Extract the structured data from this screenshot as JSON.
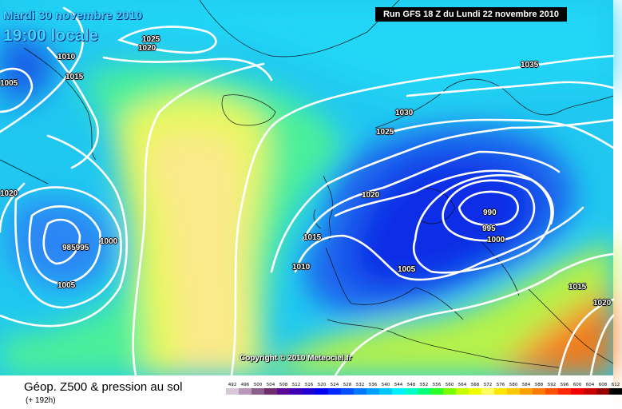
{
  "header": {
    "date": "Mardi 30 novembre 2010",
    "time": "19:00 locale",
    "run": "Run GFS 18 Z du Lundi 22 novembre 2010"
  },
  "copyright": "Copyright © 2010 Meteociel.fr",
  "footer": {
    "title": "Géop. Z500 & pression au sol",
    "subtitle": "(+ 192h)"
  },
  "isobar_labels": [
    {
      "id": "1025-a",
      "text": "1025"
    },
    {
      "id": "1020-a",
      "text": "1020"
    },
    {
      "id": "1010-a",
      "text": "1010"
    },
    {
      "id": "1015-a",
      "text": "1015"
    },
    {
      "id": "1005-a",
      "text": "1005"
    },
    {
      "id": "1020-b",
      "text": "1020"
    },
    {
      "id": "low-w",
      "text": "985995"
    },
    {
      "id": "1000-a",
      "text": "1000"
    },
    {
      "id": "1005-b",
      "text": "1005"
    },
    {
      "id": "1035",
      "text": "1035"
    },
    {
      "id": "1030",
      "text": "1030"
    },
    {
      "id": "1025-b",
      "text": "1025"
    },
    {
      "id": "1020-c",
      "text": "1020"
    },
    {
      "id": "1015-b",
      "text": "1015"
    },
    {
      "id": "1010-b",
      "text": "1010"
    },
    {
      "id": "1005-c",
      "text": "1005"
    },
    {
      "id": "990",
      "text": "990"
    },
    {
      "id": "995",
      "text": "995"
    },
    {
      "id": "1000-b",
      "text": "1000"
    },
    {
      "id": "1015-c",
      "text": "1015"
    },
    {
      "id": "1020-d",
      "text": "1020"
    }
  ],
  "scale": [
    {
      "v": "492",
      "c": "#d7c8d7"
    },
    {
      "v": "496",
      "c": "#b897b8"
    },
    {
      "v": "500",
      "c": "#8a5f8a"
    },
    {
      "v": "504",
      "c": "#6e2e6e"
    },
    {
      "v": "508",
      "c": "#5a0a96"
    },
    {
      "v": "512",
      "c": "#3c00b4"
    },
    {
      "v": "516",
      "c": "#1e00d2"
    },
    {
      "v": "520",
      "c": "#0000f0"
    },
    {
      "v": "524",
      "c": "#0028ff"
    },
    {
      "v": "528",
      "c": "#0050ff"
    },
    {
      "v": "532",
      "c": "#0078ff"
    },
    {
      "v": "536",
      "c": "#00a0ff"
    },
    {
      "v": "540",
      "c": "#00c8ff"
    },
    {
      "v": "544",
      "c": "#00f0ff"
    },
    {
      "v": "548",
      "c": "#00ffc8"
    },
    {
      "v": "552",
      "c": "#00ff78"
    },
    {
      "v": "556",
      "c": "#28ff28"
    },
    {
      "v": "560",
      "c": "#78ff00"
    },
    {
      "v": "564",
      "c": "#c8ff00"
    },
    {
      "v": "568",
      "c": "#f0ff00"
    },
    {
      "v": "572",
      "c": "#ffff64"
    },
    {
      "v": "576",
      "c": "#ffe600"
    },
    {
      "v": "580",
      "c": "#ffc800"
    },
    {
      "v": "584",
      "c": "#ffa000"
    },
    {
      "v": "588",
      "c": "#ff7800"
    },
    {
      "v": "592",
      "c": "#ff5000"
    },
    {
      "v": "596",
      "c": "#ff2800"
    },
    {
      "v": "600",
      "c": "#f00000"
    },
    {
      "v": "604",
      "c": "#c80000"
    },
    {
      "v": "608",
      "c": "#960000"
    },
    {
      "v": "612",
      "c": "#000000"
    }
  ]
}
